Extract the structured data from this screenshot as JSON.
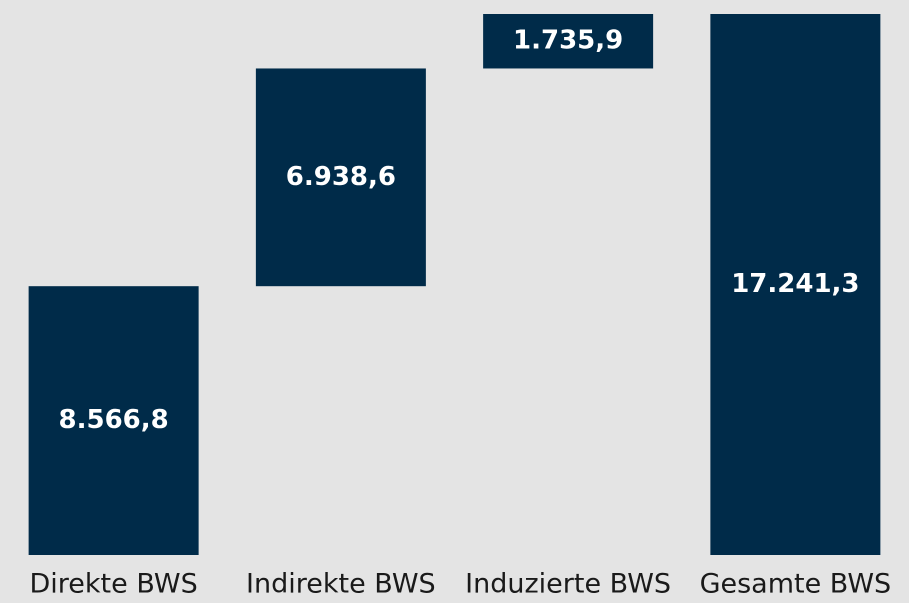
{
  "chart_data": {
    "type": "waterfall",
    "categories": [
      "Direkte BWS",
      "Indirekte BWS",
      "Induzierte BWS",
      "Gesamte BWS"
    ],
    "values": [
      8566.8,
      6938.6,
      1735.9,
      17241.3
    ],
    "value_labels": [
      "8.566,8",
      "6.938,6",
      "1.735,9",
      "17.241,3"
    ],
    "color": "#002b49"
  }
}
